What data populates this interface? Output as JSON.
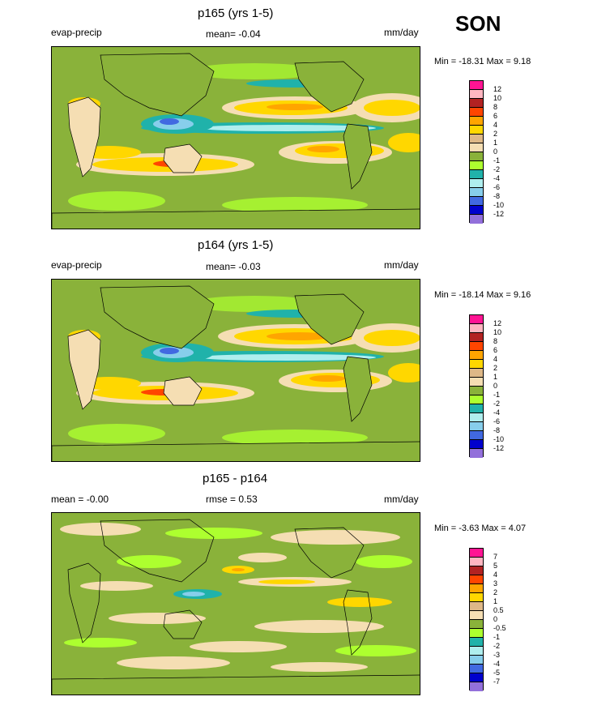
{
  "season": "SON",
  "panels": [
    {
      "title": "p165 (yrs 1-5)",
      "left_label": "evap-precip",
      "center_label": "mean=  -0.04",
      "units": "mm/day",
      "min_max": "Min = -18.31 Max =   9.18",
      "scale": "abs"
    },
    {
      "title": "p164 (yrs 1-5)",
      "left_label": "evap-precip",
      "center_label": "mean=  -0.03",
      "units": "mm/day",
      "min_max": "Min = -18.14 Max =   9.16",
      "scale": "abs"
    },
    {
      "title": "p165 - p164",
      "left_label": "mean =  -0.00",
      "center_label": "rmse =   0.53",
      "units": "mm/day",
      "min_max": "Min =  -3.63 Max =   4.07",
      "scale": "diff"
    }
  ],
  "colorbars": {
    "abs": {
      "labels": [
        "12",
        "10",
        "8",
        "6",
        "4",
        "2",
        "1",
        "0",
        "-1",
        "-2",
        "-4",
        "-6",
        "-8",
        "-10",
        "-12"
      ],
      "colors": [
        "#ff1493",
        "#ffb6c1",
        "#b22222",
        "#ff4500",
        "#ffa500",
        "#ffd700",
        "#deb887",
        "#f5deb3",
        "#8ab23a",
        "#adff2f",
        "#20b2aa",
        "#afeeee",
        "#87ceeb",
        "#4169e1",
        "#0000cd",
        "#9370db"
      ]
    },
    "diff": {
      "labels": [
        "7",
        "5",
        "4",
        "3",
        "2",
        "1",
        "0.5",
        "0",
        "-0.5",
        "-1",
        "-2",
        "-3",
        "-4",
        "-5",
        "-7"
      ],
      "colors": [
        "#ff1493",
        "#ffb6c1",
        "#b22222",
        "#ff4500",
        "#ffa500",
        "#ffd700",
        "#deb887",
        "#f5deb3",
        "#8ab23a",
        "#adff2f",
        "#20b2aa",
        "#afeeee",
        "#87ceeb",
        "#4169e1",
        "#0000cd",
        "#9370db"
      ]
    }
  }
}
